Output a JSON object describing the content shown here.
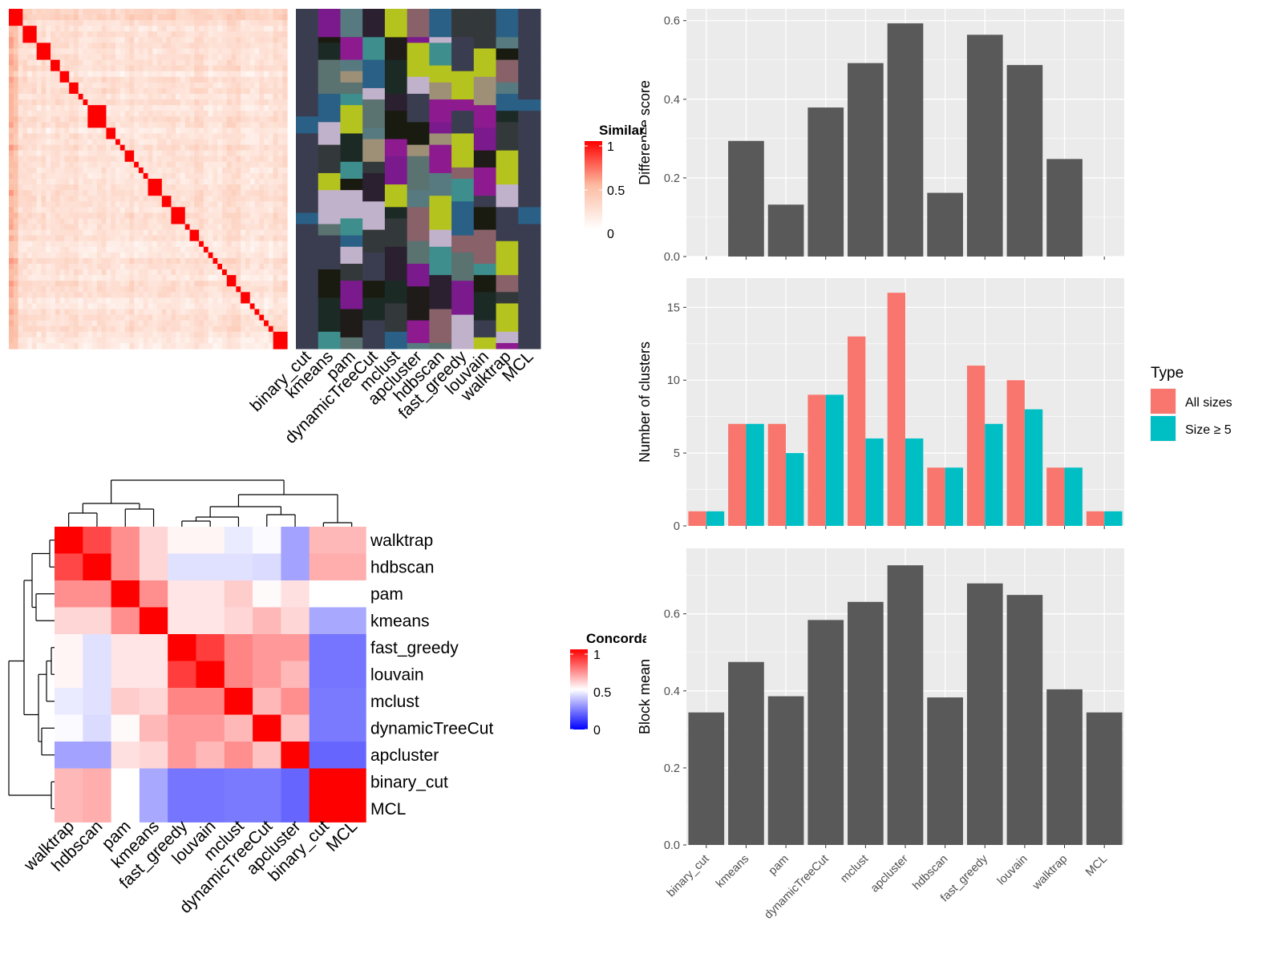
{
  "methods_x": [
    "binary_cut",
    "kmeans",
    "pam",
    "dynamicTreeCut",
    "mclust",
    "apcluster",
    "hdbscan",
    "fast_greedy",
    "louvain",
    "walktrap",
    "MCL"
  ],
  "similarity_heatmap": {
    "legend_title": "Similarity",
    "legend_ticks": [
      "1",
      "0.5",
      "0"
    ],
    "low_color": "#FFFFFF",
    "mid_color": "#FCBBA1",
    "high_color": "#FF0000",
    "n_terms": 60,
    "blocks": [
      3,
      3,
      3,
      2,
      2,
      2,
      1,
      1,
      4,
      2,
      1,
      1,
      2,
      1,
      1,
      1,
      3,
      2,
      3,
      1,
      2,
      1,
      1,
      1,
      1,
      1,
      1,
      2,
      1,
      2,
      1,
      1,
      1,
      1,
      1,
      4,
      2
    ],
    "mean_off_diagonal": 0.22
  },
  "cluster_assignment": {
    "columns": [
      "binary_cut",
      "kmeans",
      "pam",
      "dynamicTreeCut",
      "mclust",
      "apcluster",
      "hdbscan",
      "fast_greedy",
      "louvain",
      "walktrap",
      "MCL"
    ],
    "palette": [
      "#3A3D4F",
      "#7B1A8C",
      "#567A80",
      "#2B2030",
      "#B5C31E",
      "#2A5F86",
      "#191B10",
      "#1E1B18",
      "#9E8F77",
      "#C1B2CB",
      "#886169",
      "#1C2A26",
      "#8D1B8F",
      "#5A7270",
      "#33383A",
      "#3D8E8C"
    ],
    "sizes_all": [
      1,
      7,
      7,
      9,
      13,
      16,
      4,
      11,
      10,
      4,
      1
    ]
  },
  "concordance_heatmap": {
    "legend_title": "Concordance",
    "legend_ticks": [
      "1",
      "0.5",
      "0"
    ],
    "low_color": "#0000FF",
    "mid_color": "#FFFFFF",
    "high_color": "#FF0000",
    "row_labels": [
      "walktrap",
      "hdbscan",
      "pam",
      "kmeans",
      "fast_greedy",
      "louvain",
      "mclust",
      "dynamicTreeCut",
      "apcluster",
      "binary_cut",
      "MCL"
    ],
    "col_labels": [
      "walktrap",
      "hdbscan",
      "pam",
      "kmeans",
      "fast_greedy",
      "louvain",
      "mclust",
      "dynamicTreeCut",
      "apcluster",
      "binary_cut",
      "MCL"
    ],
    "matrix": [
      [
        1.0,
        0.86,
        0.72,
        0.58,
        0.52,
        0.52,
        0.46,
        0.49,
        0.32,
        0.64,
        0.64
      ],
      [
        0.86,
        1.0,
        0.72,
        0.58,
        0.44,
        0.44,
        0.44,
        0.43,
        0.32,
        0.66,
        0.66
      ],
      [
        0.72,
        0.72,
        1.0,
        0.72,
        0.55,
        0.55,
        0.6,
        0.51,
        0.56,
        0.5,
        0.5
      ],
      [
        0.58,
        0.58,
        0.72,
        1.0,
        0.55,
        0.55,
        0.58,
        0.64,
        0.58,
        0.33,
        0.33
      ],
      [
        0.52,
        0.44,
        0.55,
        0.55,
        1.0,
        0.88,
        0.74,
        0.7,
        0.7,
        0.23,
        0.23
      ],
      [
        0.52,
        0.44,
        0.55,
        0.55,
        0.88,
        1.0,
        0.74,
        0.7,
        0.64,
        0.23,
        0.23
      ],
      [
        0.46,
        0.44,
        0.6,
        0.58,
        0.74,
        0.74,
        1.0,
        0.64,
        0.72,
        0.24,
        0.24
      ],
      [
        0.49,
        0.43,
        0.51,
        0.64,
        0.7,
        0.7,
        0.64,
        1.0,
        0.62,
        0.24,
        0.24
      ],
      [
        0.32,
        0.32,
        0.56,
        0.58,
        0.7,
        0.64,
        0.72,
        0.62,
        1.0,
        0.2,
        0.2
      ],
      [
        0.64,
        0.66,
        0.5,
        0.33,
        0.23,
        0.23,
        0.24,
        0.24,
        0.2,
        1.0,
        1.0
      ],
      [
        0.64,
        0.66,
        0.5,
        0.33,
        0.23,
        0.23,
        0.24,
        0.24,
        0.2,
        1.0,
        1.0
      ]
    ]
  },
  "chart_data": [
    {
      "type": "bar",
      "categories": [
        "binary_cut",
        "kmeans",
        "pam",
        "dynamicTreeCut",
        "mclust",
        "apcluster",
        "hdbscan",
        "fast_greedy",
        "louvain",
        "walktrap",
        "MCL"
      ],
      "values": [
        0,
        0.294,
        0.132,
        0.379,
        0.492,
        0.593,
        0.162,
        0.564,
        0.487,
        0.248,
        0
      ],
      "ylabel": "Difference score",
      "ylim": [
        0,
        0.63
      ],
      "yticks": [
        "0.0",
        "0.2",
        "0.4",
        "0.6"
      ],
      "show_x_labels": false
    },
    {
      "type": "bar",
      "categories": [
        "binary_cut",
        "kmeans",
        "pam",
        "dynamicTreeCut",
        "mclust",
        "apcluster",
        "hdbscan",
        "fast_greedy",
        "louvain",
        "walktrap",
        "MCL"
      ],
      "series": [
        {
          "name": "All sizes",
          "color": "#F8766D",
          "values": [
            1,
            7,
            7,
            9,
            13,
            16,
            4,
            11,
            10,
            4,
            1
          ]
        },
        {
          "name": "Size ≥ 5",
          "color": "#00BFC4",
          "values": [
            1,
            7,
            5,
            9,
            6,
            6,
            4,
            7,
            8,
            4,
            1
          ]
        }
      ],
      "ylabel": "Number of clusters",
      "ylim": [
        0,
        17
      ],
      "yticks": [
        "0",
        "5",
        "10",
        "15"
      ],
      "legend_title": "Type",
      "legend_position": "right",
      "show_x_labels": false
    },
    {
      "type": "bar",
      "categories": [
        "binary_cut",
        "kmeans",
        "pam",
        "dynamicTreeCut",
        "mclust",
        "apcluster",
        "hdbscan",
        "fast_greedy",
        "louvain",
        "walktrap",
        "MCL"
      ],
      "values": [
        0.344,
        0.475,
        0.386,
        0.584,
        0.631,
        0.726,
        0.383,
        0.679,
        0.649,
        0.404,
        0.344
      ],
      "ylabel": "Block mean",
      "ylim": [
        0,
        0.77
      ],
      "yticks": [
        "0.0",
        "0.2",
        "0.4",
        "0.6"
      ],
      "show_x_labels": true
    }
  ]
}
